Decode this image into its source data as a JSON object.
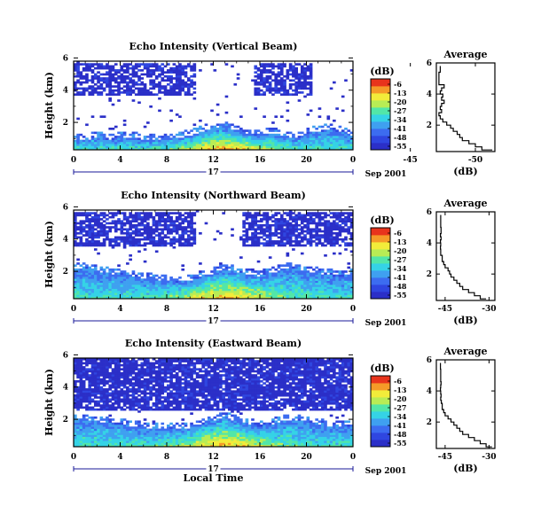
{
  "chart_data": [
    {
      "type": "heatmap",
      "title": "Echo Intensity (Vertical Beam)",
      "ylabel": "Height (km)",
      "x_ticks": [
        "0",
        "4",
        "8",
        "12",
        "16",
        "20",
        "0"
      ],
      "day_label": "17",
      "date_label": "Sep 2001",
      "xlim": [
        0,
        24
      ],
      "ylim": [
        0.3,
        5.8
      ],
      "y_ticks": [
        "2",
        "4",
        "6"
      ],
      "colorbar": {
        "unit": "(dB)",
        "ticks": [
          "-6",
          "-13",
          "-20",
          "-27",
          "-34",
          "-41",
          "-48",
          "-55"
        ]
      },
      "base_km": [
        1.0,
        0.9,
        1.1,
        0.95,
        1.05,
        1.1,
        0.9,
        0.95,
        1.0,
        1.05,
        1.2,
        1.45,
        1.65,
        1.75,
        1.5,
        1.3,
        1.15,
        1.35,
        1.2,
        1.0,
        1.3,
        1.45,
        1.6,
        1.4,
        1.2
      ],
      "upper_layer_km": [
        3.7,
        5.7
      ],
      "upper_layer_fill": 0.7,
      "upper_layer_hours": [
        [
          0,
          10.5
        ],
        [
          15.5,
          20.5
        ]
      ],
      "peak_hour": 13,
      "profile": {
        "title": "Average",
        "xlabel": "(dB)",
        "x_ticks": [
          "-45",
          "-50"
        ],
        "xlim": [
          -47,
          -51.5
        ],
        "y_ticks": [
          "2",
          "4",
          "6"
        ],
        "ylim": [
          0.3,
          6.0
        ],
        "heights_km": [
          0.4,
          0.6,
          0.8,
          1.0,
          1.2,
          1.4,
          1.6,
          1.8,
          2.0,
          2.2,
          2.4,
          2.6,
          2.8,
          3.0,
          3.2,
          3.4,
          3.6,
          3.8,
          4.0,
          4.2,
          4.4,
          4.6,
          5.0,
          5.4,
          5.8
        ],
        "values_db": [
          -51.3,
          -50.5,
          -50.0,
          -49.5,
          -49.0,
          -48.8,
          -48.6,
          -48.3,
          -48.1,
          -47.8,
          -47.5,
          -47.3,
          -47.2,
          -47.4,
          -47.3,
          -47.4,
          -47.6,
          -47.4,
          -47.5,
          -47.3,
          -47.4,
          -47.6,
          -47.2,
          -47.2,
          -47.3
        ]
      }
    },
    {
      "type": "heatmap",
      "title": "Echo Intensity (Northward Beam)",
      "ylabel": "Height (km)",
      "x_ticks": [
        "0",
        "4",
        "8",
        "12",
        "16",
        "20",
        "0"
      ],
      "day_label": "17",
      "date_label": "Sep 2001",
      "xlim": [
        0,
        24
      ],
      "ylim": [
        0.3,
        5.8
      ],
      "y_ticks": [
        "2",
        "4",
        "6"
      ],
      "colorbar": {
        "unit": "(dB)",
        "ticks": [
          "-6",
          "-13",
          "-20",
          "-27",
          "-34",
          "-41",
          "-48",
          "-55"
        ]
      },
      "base_km": [
        2.1,
        2.2,
        2.0,
        1.9,
        1.8,
        1.7,
        1.6,
        1.5,
        1.4,
        1.35,
        1.4,
        1.6,
        1.9,
        2.1,
        2.0,
        1.8,
        1.7,
        1.9,
        2.1,
        2.2,
        2.0,
        1.9,
        1.8,
        1.7,
        1.8
      ],
      "upper_layer_km": [
        3.6,
        5.7
      ],
      "upper_layer_fill": 0.75,
      "upper_layer_hours": [
        [
          0,
          10.5
        ],
        [
          14.5,
          24
        ]
      ],
      "peak_hour": 13,
      "profile": {
        "title": "Average",
        "xlabel": "(dB)",
        "x_ticks": [
          "-45",
          "-30"
        ],
        "xlim": [
          -48,
          -28
        ],
        "y_ticks": [
          "2",
          "4",
          "6"
        ],
        "ylim": [
          0.3,
          6.0
        ],
        "heights_km": [
          0.4,
          0.6,
          0.8,
          1.0,
          1.2,
          1.4,
          1.6,
          1.8,
          2.0,
          2.2,
          2.4,
          2.6,
          2.8,
          3.0,
          3.2,
          3.4,
          3.6,
          3.8,
          4.0,
          4.2,
          4.4,
          4.6,
          5.0,
          5.4,
          5.8
        ],
        "values_db": [
          -31,
          -33,
          -35,
          -37,
          -39,
          -40,
          -41,
          -42,
          -43,
          -43.5,
          -44,
          -45,
          -45.5,
          -46,
          -46,
          -46.5,
          -46.5,
          -46.6,
          -46.5,
          -46.6,
          -46.4,
          -46.6,
          -46.4,
          -46.5,
          -46.5
        ]
      }
    },
    {
      "type": "heatmap",
      "title": "Echo Intensity (Eastward Beam)",
      "ylabel": "Height (km)",
      "xlabel": "Local Time",
      "x_ticks": [
        "0",
        "4",
        "8",
        "12",
        "16",
        "20",
        "0"
      ],
      "day_label": "17",
      "date_label": "Sep 2001",
      "xlim": [
        0,
        24
      ],
      "ylim": [
        0.3,
        5.8
      ],
      "y_ticks": [
        "2",
        "4",
        "6"
      ],
      "colorbar": {
        "unit": "(dB)",
        "ticks": [
          "-6",
          "-13",
          "-20",
          "-27",
          "-34",
          "-41",
          "-48",
          "-55"
        ]
      },
      "base_km": [
        2.0,
        2.0,
        1.9,
        1.8,
        1.7,
        1.6,
        1.5,
        1.45,
        1.4,
        1.4,
        1.5,
        1.7,
        1.9,
        2.1,
        1.9,
        1.7,
        1.6,
        1.7,
        1.9,
        2.0,
        1.8,
        1.7,
        1.6,
        1.55,
        1.6
      ],
      "upper_layer_km": [
        2.5,
        5.8
      ],
      "upper_layer_fill": 0.85,
      "upper_layer_hours": [
        [
          0,
          24
        ]
      ],
      "peak_hour": 13,
      "profile": {
        "title": "Average",
        "xlabel": "(dB)",
        "x_ticks": [
          "-45",
          "-30"
        ],
        "xlim": [
          -48,
          -28
        ],
        "y_ticks": [
          "2",
          "4",
          "6"
        ],
        "ylim": [
          0.3,
          6.0
        ],
        "heights_km": [
          0.4,
          0.6,
          0.8,
          1.0,
          1.2,
          1.4,
          1.6,
          1.8,
          2.0,
          2.2,
          2.4,
          2.6,
          2.8,
          3.0,
          3.2,
          3.4,
          3.6,
          3.8,
          4.0,
          4.2,
          4.4,
          4.6,
          5.0,
          5.4,
          5.8
        ],
        "values_db": [
          -29,
          -31,
          -33,
          -35,
          -37,
          -39,
          -40,
          -41,
          -42,
          -43,
          -44,
          -45,
          -45.5,
          -46,
          -46,
          -46.3,
          -46.5,
          -46.4,
          -46.5,
          -46.6,
          -46.5,
          -46.4,
          -46.5,
          -46.5,
          -46.6
        ]
      }
    }
  ],
  "colormap": [
    "#2b2fc8",
    "#2f46e0",
    "#3c6cf0",
    "#3fa0f0",
    "#35d3e6",
    "#52e6a8",
    "#b8ec55",
    "#f2ec3a",
    "#f59a28",
    "#e8341c"
  ]
}
